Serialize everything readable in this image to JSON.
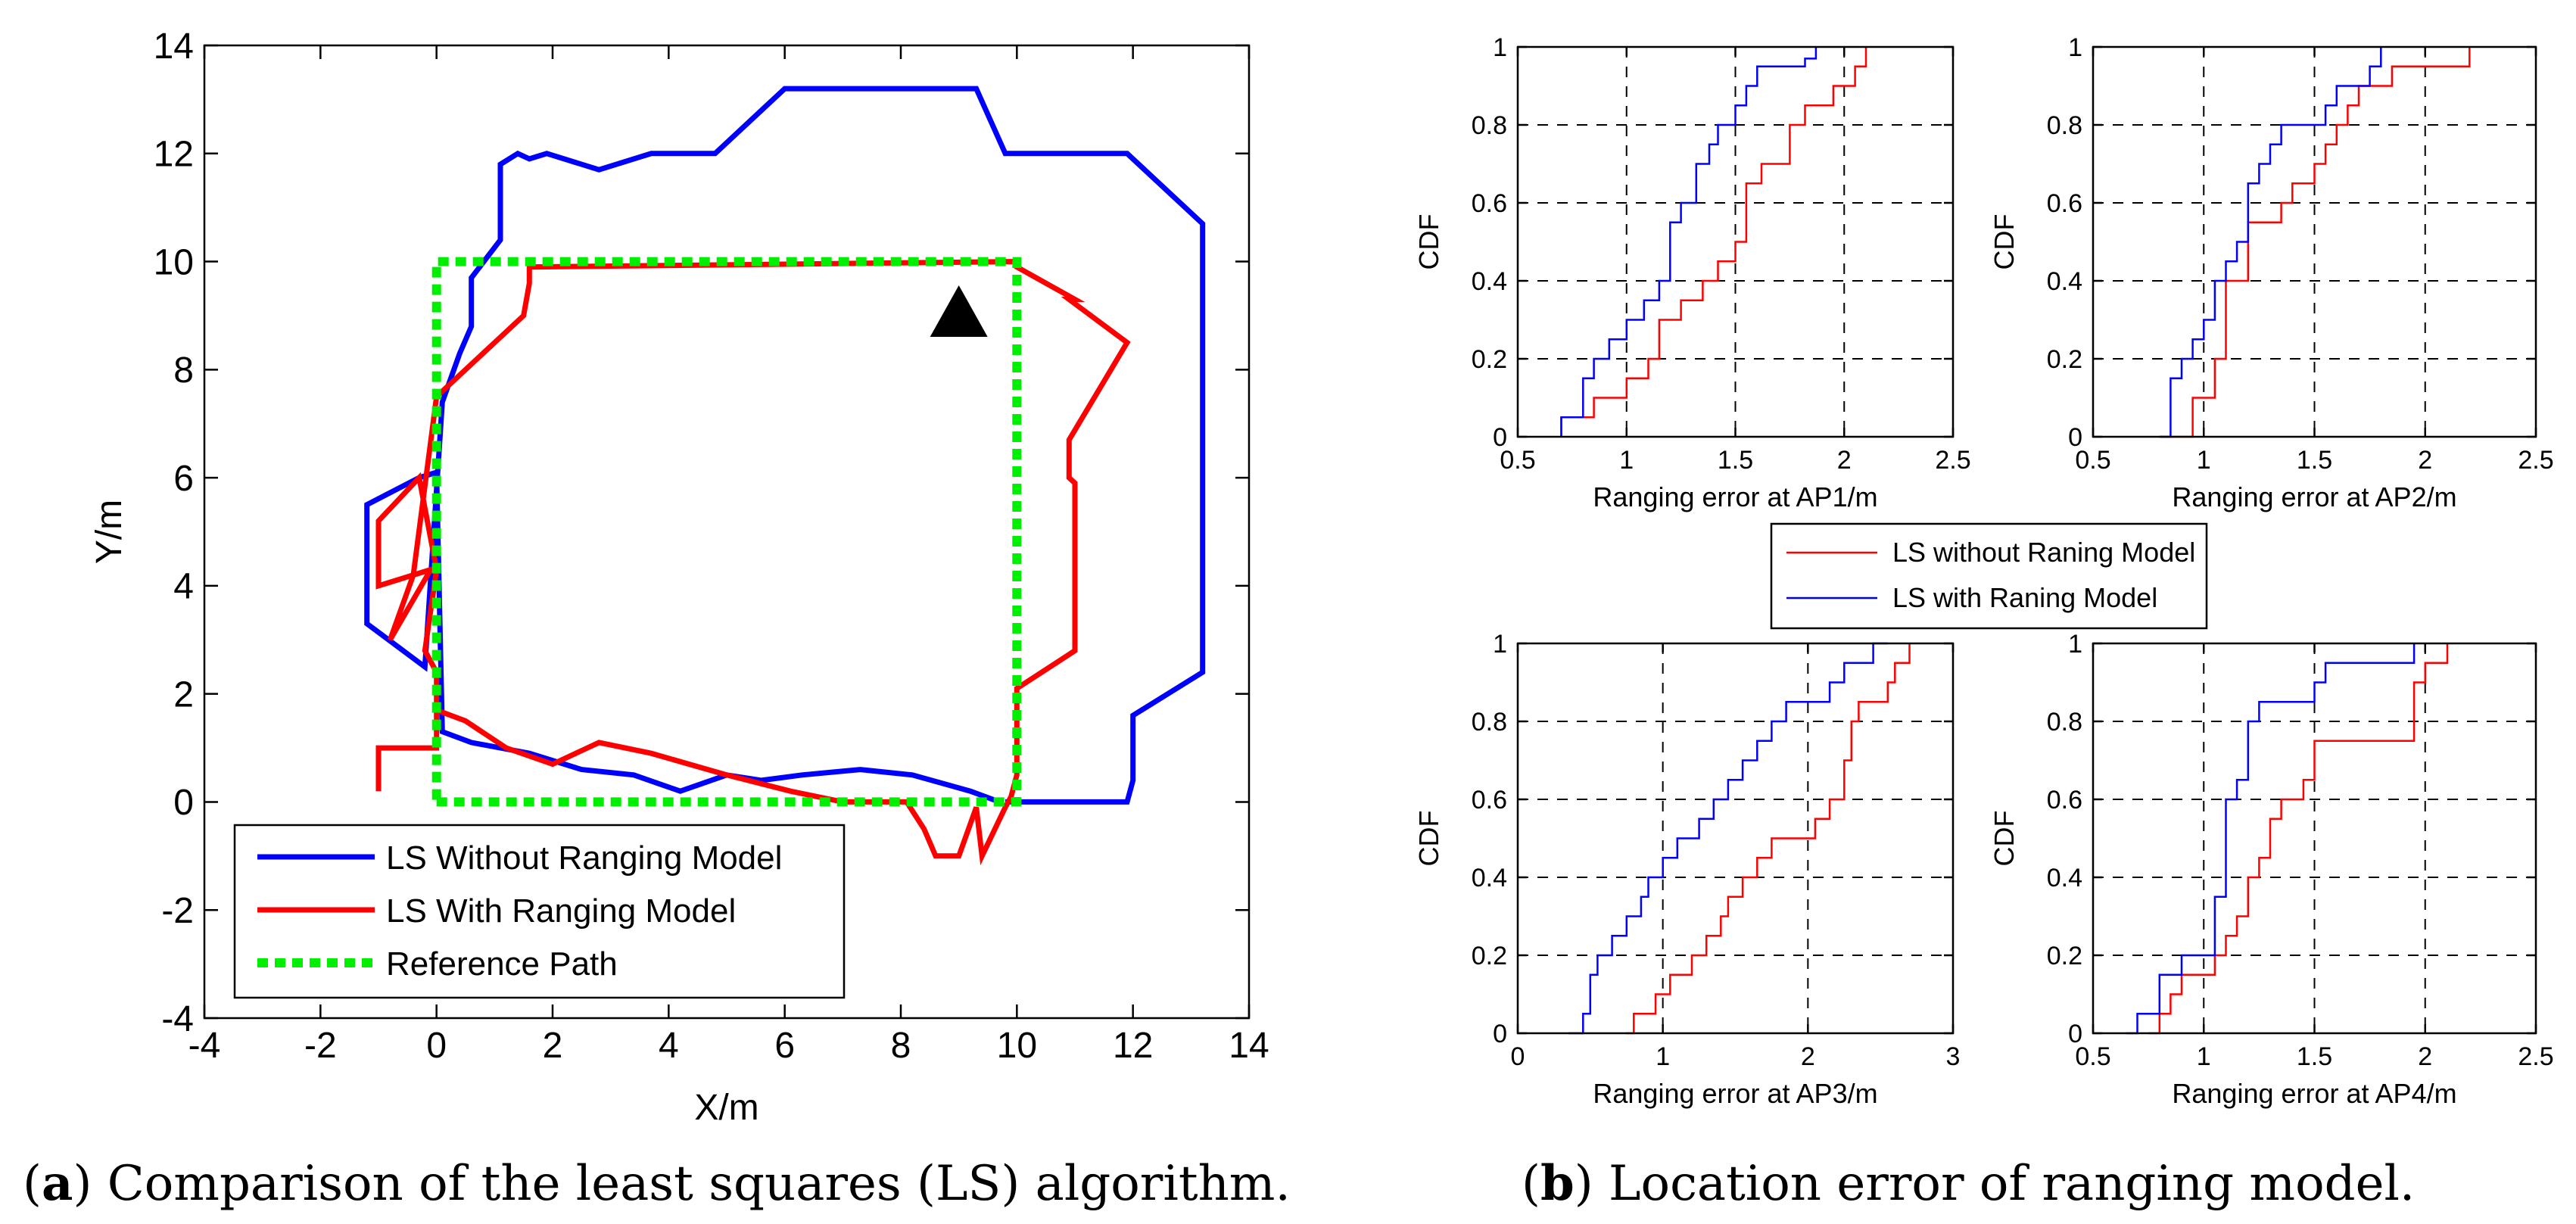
{
  "chart_data": [
    {
      "type": "line",
      "id": "traj",
      "xlabel": "X/m",
      "ylabel": "Y/m",
      "xlim": [
        -4,
        14
      ],
      "ylim": [
        -4,
        14
      ],
      "xticks": [
        -4,
        -2,
        0,
        2,
        4,
        6,
        8,
        10,
        12,
        14
      ],
      "yticks": [
        -4,
        -2,
        0,
        2,
        4,
        6,
        8,
        10,
        12,
        14
      ],
      "grid": false,
      "legend_position": "bottom-left",
      "series": [
        {
          "name": "LS Without Ranging Model",
          "color": "#0000ff",
          "style": "solid",
          "x": [
            9.7,
            9.2,
            8.2,
            7.3,
            6.3,
            5.6,
            5.0,
            4.2,
            3.4,
            2.5,
            1.6,
            0.6,
            0.1,
            0.0,
            -0.3,
            -1.2,
            -1.2,
            -0.2,
            0.1,
            0.4,
            0.6,
            0.6,
            1.1,
            1.1,
            1.4,
            1.6,
            1.9,
            2.8,
            3.7,
            4.8,
            6.0,
            9.3,
            9.8,
            11.9,
            13.2,
            13.2,
            12.0,
            12.0,
            11.9,
            9.8
          ],
          "y": [
            0.0,
            0.2,
            0.5,
            0.6,
            0.5,
            0.4,
            0.5,
            0.2,
            0.5,
            0.6,
            0.9,
            1.1,
            1.3,
            6.1,
            6.0,
            5.5,
            3.3,
            2.5,
            7.4,
            8.3,
            8.8,
            9.7,
            10.4,
            11.8,
            12.0,
            11.9,
            12.0,
            11.7,
            12.0,
            12.0,
            13.2,
            13.2,
            12.0,
            12.0,
            10.7,
            2.4,
            1.6,
            0.4,
            0.0,
            0.0
          ]
        },
        {
          "name": "LS With Ranging Model",
          "color": "#ff0000",
          "style": "solid",
          "x": [
            -1.0,
            -1.0,
            -0.5,
            0.0,
            0.0,
            0.5,
            1.2,
            2.0,
            2.8,
            3.7,
            5.0,
            6.1,
            7.0,
            8.1,
            8.4,
            8.6,
            9.0,
            9.3,
            9.4,
            9.8,
            9.9,
            10.0,
            10.0,
            11.0,
            11.0,
            10.9,
            10.9,
            11.9,
            10.9,
            11.0,
            10.0,
            10.0,
            1.6,
            1.6,
            1.5,
            1.1,
            0.1,
            0.0,
            -0.4,
            -0.8,
            -0.1,
            -1.0,
            -1.0,
            -0.3,
            0.0,
            -0.2,
            0.0,
            0.0
          ],
          "y": [
            0.2,
            1.0,
            1.0,
            1.0,
            1.7,
            1.5,
            1.0,
            0.7,
            1.1,
            0.9,
            0.5,
            0.2,
            0.0,
            0.0,
            -0.5,
            -1.0,
            -1.0,
            -0.1,
            -1.0,
            -0.1,
            0.1,
            0.5,
            2.1,
            2.8,
            5.9,
            6.0,
            6.7,
            8.5,
            9.3,
            9.3,
            9.9,
            10.0,
            9.9,
            9.6,
            9.0,
            8.6,
            7.6,
            7.5,
            4.2,
            3.0,
            4.3,
            4.0,
            5.2,
            6.0,
            4.3,
            2.8,
            2.4,
            1.7
          ]
        },
        {
          "name": "Reference Path",
          "color": "#00ee00",
          "style": "dotted",
          "x": [
            0,
            10,
            10,
            0,
            0
          ],
          "y": [
            0,
            0,
            10,
            10,
            0
          ]
        }
      ],
      "annotations": [
        {
          "type": "triangle-marker",
          "x": 9.0,
          "y": 9.0,
          "color": "#000000"
        }
      ]
    },
    {
      "type": "line",
      "id": "cdf1",
      "ylabel": "CDF",
      "xlabel": "Ranging error at AP1/m",
      "xlim": [
        0.5,
        2.5
      ],
      "ylim": [
        0,
        1
      ],
      "xticks": [
        0.5,
        1,
        1.5,
        2,
        2.5
      ],
      "yticks": [
        0,
        0.2,
        0.4,
        0.6,
        0.8,
        1
      ],
      "grid": true,
      "series": [
        {
          "name": "LS without Raning Model",
          "color": "#ff0000",
          "x": [
            0.7,
            0.85,
            1.0,
            1.1,
            1.15,
            1.25,
            1.35,
            1.42,
            1.5,
            1.55,
            1.62,
            1.75,
            1.82,
            1.95,
            2.05,
            2.1
          ],
          "y": [
            0.05,
            0.1,
            0.15,
            0.2,
            0.3,
            0.35,
            0.4,
            0.45,
            0.5,
            0.65,
            0.7,
            0.8,
            0.85,
            0.9,
            0.95,
            1.0
          ]
        },
        {
          "name": "LS with Raning Model",
          "color": "#0000ff",
          "x": [
            0.7,
            0.8,
            0.85,
            0.92,
            1.0,
            1.08,
            1.15,
            1.2,
            1.25,
            1.32,
            1.38,
            1.42,
            1.5,
            1.55,
            1.6,
            1.65,
            1.82,
            1.87
          ],
          "y": [
            0.05,
            0.15,
            0.2,
            0.25,
            0.3,
            0.35,
            0.4,
            0.55,
            0.6,
            0.7,
            0.75,
            0.8,
            0.85,
            0.9,
            0.95,
            0.95,
            0.97,
            1.0
          ]
        }
      ]
    },
    {
      "type": "line",
      "id": "cdf2",
      "ylabel": "CDF",
      "xlabel": "Ranging error at AP2/m",
      "xlim": [
        0.5,
        2.5
      ],
      "ylim": [
        0,
        1
      ],
      "xticks": [
        0.5,
        1,
        1.5,
        2,
        2.5
      ],
      "yticks": [
        0,
        0.2,
        0.4,
        0.6,
        0.8,
        1
      ],
      "grid": true,
      "series": [
        {
          "name": "LS without Raning Model",
          "color": "#ff0000",
          "x": [
            0.8,
            0.95,
            1.05,
            1.1,
            1.2,
            1.35,
            1.4,
            1.5,
            1.55,
            1.6,
            1.65,
            1.7,
            1.85,
            1.95,
            2.0,
            2.2
          ],
          "y": [
            0.0,
            0.1,
            0.2,
            0.4,
            0.55,
            0.6,
            0.65,
            0.7,
            0.75,
            0.8,
            0.85,
            0.9,
            0.95,
            0.95,
            0.95,
            1.0
          ]
        },
        {
          "name": "LS with Raning Model",
          "color": "#0000ff",
          "x": [
            0.8,
            0.85,
            0.9,
            0.95,
            1.0,
            1.05,
            1.1,
            1.15,
            1.2,
            1.25,
            1.3,
            1.35,
            1.45,
            1.55,
            1.6,
            1.7,
            1.75,
            1.8
          ],
          "y": [
            0.0,
            0.15,
            0.2,
            0.25,
            0.3,
            0.4,
            0.45,
            0.5,
            0.65,
            0.7,
            0.75,
            0.8,
            0.8,
            0.85,
            0.9,
            0.9,
            0.95,
            1.0
          ]
        }
      ]
    },
    {
      "type": "line",
      "id": "cdf3",
      "ylabel": "CDF",
      "xlabel": "Ranging error at AP3/m",
      "xlim": [
        0,
        3
      ],
      "ylim": [
        0,
        1
      ],
      "xticks": [
        0,
        1,
        2,
        3
      ],
      "yticks": [
        0,
        0.2,
        0.4,
        0.6,
        0.8,
        1
      ],
      "grid": true,
      "series": [
        {
          "name": "LS without Raning Model",
          "color": "#ff0000",
          "x": [
            0.75,
            0.8,
            0.95,
            1.05,
            1.2,
            1.3,
            1.4,
            1.45,
            1.55,
            1.65,
            1.75,
            1.8,
            1.85,
            1.95,
            2.05,
            2.15,
            2.25,
            2.3,
            2.35,
            2.45,
            2.55,
            2.6,
            2.7
          ],
          "y": [
            0.0,
            0.05,
            0.1,
            0.15,
            0.2,
            0.25,
            0.3,
            0.35,
            0.4,
            0.45,
            0.5,
            0.5,
            0.5,
            0.5,
            0.55,
            0.6,
            0.7,
            0.8,
            0.85,
            0.85,
            0.9,
            0.95,
            1.0
          ]
        },
        {
          "name": "LS with Raning Model",
          "color": "#0000ff",
          "x": [
            0.35,
            0.45,
            0.5,
            0.55,
            0.65,
            0.75,
            0.85,
            0.9,
            1.0,
            1.1,
            1.25,
            1.35,
            1.45,
            1.55,
            1.65,
            1.75,
            1.85,
            1.95,
            2.05,
            2.15,
            2.25,
            2.35,
            2.45,
            2.55
          ],
          "y": [
            0.0,
            0.05,
            0.15,
            0.2,
            0.25,
            0.3,
            0.35,
            0.4,
            0.45,
            0.5,
            0.55,
            0.6,
            0.65,
            0.7,
            0.75,
            0.8,
            0.85,
            0.85,
            0.85,
            0.9,
            0.95,
            0.95,
            1.0,
            1.0
          ]
        }
      ]
    },
    {
      "type": "line",
      "id": "cdf4",
      "ylabel": "CDF",
      "xlabel": "Ranging error at AP4/m",
      "xlim": [
        0.5,
        2.5
      ],
      "ylim": [
        0,
        1
      ],
      "xticks": [
        0.5,
        1,
        1.5,
        2,
        2.5
      ],
      "yticks": [
        0,
        0.2,
        0.4,
        0.6,
        0.8,
        1
      ],
      "grid": true,
      "series": [
        {
          "name": "LS without Raning Model",
          "color": "#ff0000",
          "x": [
            0.75,
            0.8,
            0.85,
            0.9,
            1.05,
            1.1,
            1.15,
            1.2,
            1.25,
            1.3,
            1.35,
            1.45,
            1.5,
            1.6,
            1.75,
            1.95,
            2.0,
            2.1
          ],
          "y": [
            0.0,
            0.05,
            0.1,
            0.15,
            0.2,
            0.25,
            0.3,
            0.4,
            0.45,
            0.55,
            0.6,
            0.65,
            0.75,
            0.75,
            0.75,
            0.9,
            0.95,
            1.0
          ]
        },
        {
          "name": "LS with Raning Model",
          "color": "#0000ff",
          "x": [
            0.65,
            0.7,
            0.8,
            0.9,
            1.05,
            1.1,
            1.15,
            1.2,
            1.25,
            1.35,
            1.5,
            1.55,
            1.75,
            1.8,
            1.95
          ],
          "y": [
            0.0,
            0.05,
            0.15,
            0.2,
            0.35,
            0.6,
            0.65,
            0.8,
            0.85,
            0.85,
            0.9,
            0.95,
            0.95,
            0.95,
            1.0
          ]
        }
      ]
    }
  ],
  "legend_b": [
    {
      "label": "LS without Raning Model",
      "color": "#ff0000"
    },
    {
      "label": "LS with Raning Model",
      "color": "#0000ff"
    }
  ],
  "caption_a": {
    "letter": "a",
    "text": " Comparison of the least squares (LS) algorithm."
  },
  "caption_b": {
    "letter": "b",
    "text": " Location error of ranging model."
  }
}
